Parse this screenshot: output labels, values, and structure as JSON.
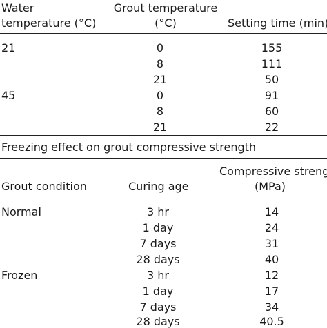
{
  "table1": {
    "headers": {
      "water": [
        "Water",
        "temperature (°C)"
      ],
      "grout": [
        "Grout temperature",
        "(°C)"
      ],
      "setting": "Setting time (min)"
    },
    "groups": [
      {
        "water": "21",
        "rows": [
          {
            "grout": "0",
            "time": "155"
          },
          {
            "grout": "8",
            "time": "111"
          },
          {
            "grout": "21",
            "time": "50"
          }
        ]
      },
      {
        "water": "45",
        "rows": [
          {
            "grout": "0",
            "time": "91"
          },
          {
            "grout": "8",
            "time": "60"
          },
          {
            "grout": "21",
            "time": "22"
          }
        ]
      }
    ]
  },
  "table2": {
    "title": "Freezing effect on grout compressive strength",
    "headers": {
      "condition": "Grout condition",
      "age": "Curing age",
      "strength": [
        "Compressive strength",
        "(MPa)"
      ]
    },
    "groups": [
      {
        "condition": "Normal",
        "rows": [
          {
            "age": "3 hr",
            "strength": "14"
          },
          {
            "age": "1 day",
            "strength": "24"
          },
          {
            "age": "7 days",
            "strength": "31"
          },
          {
            "age": "28 days",
            "strength": "40"
          }
        ]
      },
      {
        "condition": "Frozen",
        "rows": [
          {
            "age": "3 hr",
            "strength": "12"
          },
          {
            "age": "1 day",
            "strength": "17"
          },
          {
            "age": "7 days",
            "strength": "34"
          },
          {
            "age": "28 days",
            "strength": "40.5"
          }
        ]
      }
    ]
  }
}
